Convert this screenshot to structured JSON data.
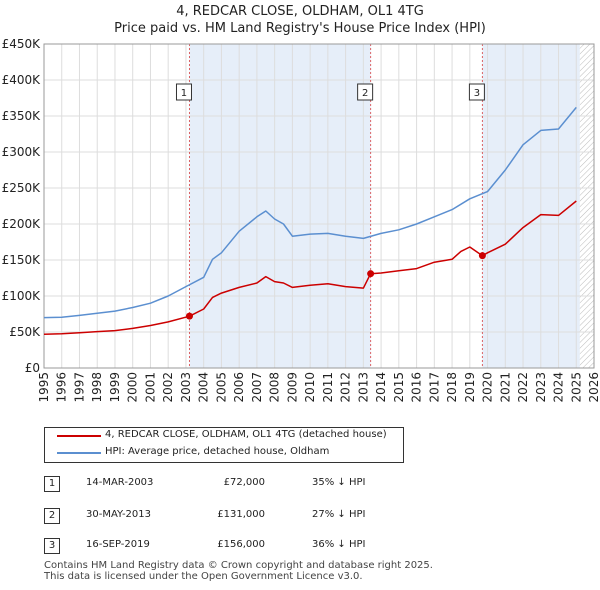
{
  "title": "4, REDCAR CLOSE, OLDHAM, OL1 4TG",
  "subtitle": "Price paid vs. HM Land Registry's House Price Index (HPI)",
  "colors": {
    "price_line": "#cc0000",
    "hpi_line": "#5b8fd0",
    "shade": "#dde8f7",
    "grid": "#dddddd"
  },
  "chart_data": {
    "type": "line",
    "xlim": [
      1995,
      2026
    ],
    "ylim": [
      0,
      450000
    ],
    "x_ticks": [
      1995,
      1996,
      1997,
      1998,
      1999,
      2000,
      2001,
      2002,
      2003,
      2004,
      2005,
      2006,
      2007,
      2008,
      2009,
      2010,
      2011,
      2012,
      2013,
      2014,
      2015,
      2016,
      2017,
      2018,
      2019,
      2020,
      2021,
      2022,
      2023,
      2024,
      2025,
      2026
    ],
    "y_ticks": [
      {
        "value": 0,
        "label": "£0"
      },
      {
        "value": 50000,
        "label": "£50K"
      },
      {
        "value": 100000,
        "label": "£100K"
      },
      {
        "value": 150000,
        "label": "£150K"
      },
      {
        "value": 200000,
        "label": "£200K"
      },
      {
        "value": 250000,
        "label": "£250K"
      },
      {
        "value": 300000,
        "label": "£300K"
      },
      {
        "value": 350000,
        "label": "£350K"
      },
      {
        "value": 400000,
        "label": "£400K"
      },
      {
        "value": 450000,
        "label": "£450K"
      }
    ],
    "shaded_ranges": [
      [
        2003.2,
        2013.41
      ],
      [
        2019.71,
        2025.2
      ]
    ],
    "future_hatch_from": 2025.2,
    "series": [
      {
        "name": "4, REDCAR CLOSE, OLDHAM, OL1 4TG (detached house)",
        "color": "#cc0000",
        "points": [
          [
            1995,
            47000
          ],
          [
            1996,
            47500
          ],
          [
            1997,
            49000
          ],
          [
            1998,
            50500
          ],
          [
            1999,
            52000
          ],
          [
            2000,
            55000
          ],
          [
            2001,
            59000
          ],
          [
            2002,
            64000
          ],
          [
            2003.2,
            72000
          ],
          [
            2004,
            82000
          ],
          [
            2004.5,
            98000
          ],
          [
            2005,
            104000
          ],
          [
            2006,
            112000
          ],
          [
            2007,
            118000
          ],
          [
            2007.5,
            127000
          ],
          [
            2008,
            120000
          ],
          [
            2008.5,
            118000
          ],
          [
            2009,
            112000
          ],
          [
            2010,
            115000
          ],
          [
            2011,
            117000
          ],
          [
            2012,
            113000
          ],
          [
            2013,
            111000
          ],
          [
            2013.41,
            131000
          ],
          [
            2014,
            132000
          ],
          [
            2015,
            135000
          ],
          [
            2016,
            138000
          ],
          [
            2017,
            147000
          ],
          [
            2018,
            151000
          ],
          [
            2018.5,
            162000
          ],
          [
            2019,
            168000
          ],
          [
            2019.71,
            156000
          ],
          [
            2020,
            160000
          ],
          [
            2021,
            172000
          ],
          [
            2022,
            195000
          ],
          [
            2023,
            213000
          ],
          [
            2024,
            212000
          ],
          [
            2025,
            232000
          ]
        ]
      },
      {
        "name": "HPI: Average price, detached house, Oldham",
        "color": "#5b8fd0",
        "points": [
          [
            1995,
            70000
          ],
          [
            1996,
            70500
          ],
          [
            1997,
            73000
          ],
          [
            1998,
            76000
          ],
          [
            1999,
            79000
          ],
          [
            2000,
            84000
          ],
          [
            2001,
            90000
          ],
          [
            2002,
            100000
          ],
          [
            2003,
            113000
          ],
          [
            2004,
            126000
          ],
          [
            2004.5,
            151000
          ],
          [
            2005,
            160000
          ],
          [
            2006,
            190000
          ],
          [
            2007,
            210000
          ],
          [
            2007.5,
            218000
          ],
          [
            2008,
            207000
          ],
          [
            2008.5,
            200000
          ],
          [
            2009,
            183000
          ],
          [
            2010,
            186000
          ],
          [
            2011,
            187000
          ],
          [
            2012,
            183000
          ],
          [
            2013,
            180000
          ],
          [
            2014,
            187000
          ],
          [
            2015,
            192000
          ],
          [
            2016,
            200000
          ],
          [
            2017,
            210000
          ],
          [
            2018,
            220000
          ],
          [
            2019,
            235000
          ],
          [
            2020,
            245000
          ],
          [
            2021,
            275000
          ],
          [
            2022,
            310000
          ],
          [
            2023,
            330000
          ],
          [
            2024,
            332000
          ],
          [
            2025,
            362000
          ]
        ]
      }
    ],
    "markers": [
      {
        "label": "1",
        "x": 2003.2,
        "value": 72000
      },
      {
        "label": "2",
        "x": 2013.41,
        "value": 131000
      },
      {
        "label": "3",
        "x": 2019.71,
        "value": 156000
      }
    ]
  },
  "legend": {
    "items": [
      {
        "label": "4, REDCAR CLOSE, OLDHAM, OL1 4TG (detached house)"
      },
      {
        "label": "HPI: Average price, detached house, Oldham"
      }
    ]
  },
  "transactions": [
    {
      "num": "1",
      "date": "14-MAR-2003",
      "price": "£72,000",
      "hpi": "35% ↓ HPI"
    },
    {
      "num": "2",
      "date": "30-MAY-2013",
      "price": "£131,000",
      "hpi": "27% ↓ HPI"
    },
    {
      "num": "3",
      "date": "16-SEP-2019",
      "price": "£156,000",
      "hpi": "36% ↓ HPI"
    }
  ],
  "footer": {
    "line1": "Contains HM Land Registry data © Crown copyright and database right 2025.",
    "line2": "This data is licensed under the Open Government Licence v3.0."
  }
}
